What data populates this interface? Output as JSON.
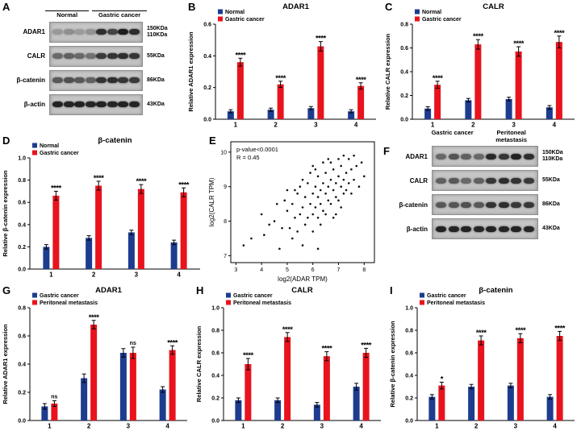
{
  "colors": {
    "blue": "#1d3c8f",
    "red": "#e8131d",
    "band": "#151515"
  },
  "panels": {
    "A": {
      "label": "A",
      "headers": [
        "Normal",
        "Gastric cancer"
      ],
      "rows": [
        {
          "protein": "ADAR1",
          "kda": [
            "150KDa",
            "110KDa"
          ],
          "lanes": [
            0.22,
            0.28,
            0.2,
            0.26,
            0.85,
            0.72,
            0.95,
            0.85
          ]
        },
        {
          "protein": "CALR",
          "kda": [
            "55KDa"
          ],
          "lanes": [
            0.5,
            0.55,
            0.5,
            0.45,
            0.78,
            0.82,
            0.85,
            0.8
          ]
        },
        {
          "protein": "β-catenin",
          "kda": [
            "86KDa"
          ],
          "lanes": [
            0.6,
            0.65,
            0.6,
            0.55,
            0.82,
            0.85,
            0.8,
            0.78
          ]
        },
        {
          "protein": "β-actin",
          "kda": [
            "43KDa"
          ],
          "lanes": [
            0.92,
            0.9,
            0.92,
            0.9,
            0.92,
            0.9,
            0.92,
            0.9
          ]
        }
      ]
    },
    "F": {
      "label": "F",
      "headers": [
        "Gastric cancer",
        "Peritoneal metastasis"
      ],
      "rows": [
        {
          "protein": "ADAR1",
          "kda": [
            "150KDa",
            "110KDa"
          ],
          "lanes": [
            0.5,
            0.62,
            0.55,
            0.5,
            0.88,
            0.8,
            0.92,
            0.85
          ]
        },
        {
          "protein": "CALR",
          "kda": [
            "55KDa"
          ],
          "lanes": [
            0.55,
            0.6,
            0.5,
            0.55,
            0.8,
            0.85,
            0.82,
            0.78
          ]
        },
        {
          "protein": "β-catenin",
          "kda": [
            "86KDa"
          ],
          "lanes": [
            0.6,
            0.62,
            0.65,
            0.6,
            0.82,
            0.85,
            0.8,
            0.8
          ]
        },
        {
          "protein": "β-actin",
          "kda": [
            "43KDa"
          ],
          "lanes": [
            0.92,
            0.9,
            0.92,
            0.9,
            0.92,
            0.9,
            0.92,
            0.9
          ]
        }
      ]
    }
  },
  "chart_data": [
    {
      "id": "B",
      "panel": "B",
      "type": "bar",
      "title": "ADAR1",
      "ylabel": "Relative ADAR1 expression",
      "ylim": [
        0,
        0.6
      ],
      "yticks": [
        0,
        0.2,
        0.4,
        0.6
      ],
      "categories": [
        "1",
        "2",
        "3",
        "4"
      ],
      "series": [
        {
          "name": "Normal",
          "color": "#1d3c8f",
          "values": [
            0.05,
            0.06,
            0.07,
            0.05
          ],
          "errors": [
            0.01,
            0.01,
            0.01,
            0.01
          ]
        },
        {
          "name": "Gastric cancer",
          "color": "#e8131d",
          "values": [
            0.36,
            0.22,
            0.46,
            0.21
          ],
          "errors": [
            0.025,
            0.02,
            0.03,
            0.02
          ]
        }
      ],
      "significance": [
        "****",
        "****",
        "****",
        "****"
      ]
    },
    {
      "id": "C",
      "panel": "C",
      "type": "bar",
      "title": "CALR",
      "ylabel": "Relative CALR expression",
      "ylim": [
        0,
        0.8
      ],
      "yticks": [
        0,
        0.2,
        0.4,
        0.6,
        0.8
      ],
      "categories": [
        "1",
        "2",
        "3",
        "4"
      ],
      "series": [
        {
          "name": "Normal",
          "color": "#1d3c8f",
          "values": [
            0.09,
            0.16,
            0.17,
            0.1
          ],
          "errors": [
            0.015,
            0.015,
            0.015,
            0.015
          ]
        },
        {
          "name": "Gastric cancer",
          "color": "#e8131d",
          "values": [
            0.29,
            0.63,
            0.57,
            0.65
          ],
          "errors": [
            0.03,
            0.04,
            0.04,
            0.05
          ]
        }
      ],
      "significance": [
        "****",
        "****",
        "****",
        "****"
      ]
    },
    {
      "id": "D",
      "panel": "D",
      "type": "bar",
      "title": "β-catenin",
      "ylabel": "Relative β-catenin expression",
      "ylim": [
        0,
        1.0
      ],
      "yticks": [
        0,
        0.2,
        0.4,
        0.6,
        0.8,
        1.0
      ],
      "categories": [
        "1",
        "2",
        "3",
        "4"
      ],
      "series": [
        {
          "name": "Normal",
          "color": "#1d3c8f",
          "values": [
            0.2,
            0.28,
            0.33,
            0.24
          ],
          "errors": [
            0.02,
            0.02,
            0.02,
            0.02
          ]
        },
        {
          "name": "Gastric cancer",
          "color": "#e8131d",
          "values": [
            0.66,
            0.75,
            0.72,
            0.69
          ],
          "errors": [
            0.04,
            0.04,
            0.04,
            0.04
          ]
        }
      ],
      "significance": [
        "****",
        "****",
        "****",
        "****"
      ]
    },
    {
      "id": "E",
      "panel": "E",
      "type": "scatter",
      "annotation": [
        "p-value<0.0001",
        "R = 0.45"
      ],
      "xlabel": "log2(ADAR TPM)",
      "ylabel": "log2(CALR TPM)",
      "xlim": [
        2.8,
        8.4
      ],
      "xticks": [
        3,
        4,
        5,
        6,
        7,
        8
      ],
      "ylim": [
        6.8,
        10.3
      ],
      "yticks": [
        7,
        8,
        9,
        10
      ],
      "points": [
        [
          3.3,
          7.3
        ],
        [
          3.6,
          7.5
        ],
        [
          4.0,
          8.2
        ],
        [
          4.1,
          7.6
        ],
        [
          4.3,
          7.9
        ],
        [
          4.5,
          8.0
        ],
        [
          4.6,
          8.5
        ],
        [
          4.7,
          7.2
        ],
        [
          4.8,
          7.8
        ],
        [
          4.9,
          8.6
        ],
        [
          5.0,
          8.3
        ],
        [
          5.0,
          8.9
        ],
        [
          5.1,
          7.8
        ],
        [
          5.2,
          8.5
        ],
        [
          5.2,
          7.5
        ],
        [
          5.3,
          8.1
        ],
        [
          5.3,
          8.9
        ],
        [
          5.4,
          8.8
        ],
        [
          5.4,
          7.7
        ],
        [
          5.5,
          8.2
        ],
        [
          5.5,
          9.0
        ],
        [
          5.6,
          8.4
        ],
        [
          5.6,
          9.2
        ],
        [
          5.6,
          7.3
        ],
        [
          5.7,
          8.7
        ],
        [
          5.7,
          7.9
        ],
        [
          5.8,
          8.1
        ],
        [
          5.8,
          9.1
        ],
        [
          5.9,
          8.5
        ],
        [
          5.9,
          9.4
        ],
        [
          6.0,
          8.8
        ],
        [
          6.0,
          8.2
        ],
        [
          6.0,
          7.7
        ],
        [
          6.0,
          9.6
        ],
        [
          6.1,
          9.0
        ],
        [
          6.1,
          8.4
        ],
        [
          6.1,
          9.5
        ],
        [
          6.2,
          8.7
        ],
        [
          6.2,
          9.3
        ],
        [
          6.2,
          7.2
        ],
        [
          6.2,
          8.1
        ],
        [
          6.3,
          8.5
        ],
        [
          6.3,
          8.9
        ],
        [
          6.3,
          7.9
        ],
        [
          6.4,
          9.1
        ],
        [
          6.4,
          8.3
        ],
        [
          6.4,
          9.7
        ],
        [
          6.5,
          8.8
        ],
        [
          6.5,
          9.4
        ],
        [
          6.5,
          8.2
        ],
        [
          6.6,
          8.6
        ],
        [
          6.6,
          9.0
        ],
        [
          6.6,
          9.8
        ],
        [
          6.7,
          9.2
        ],
        [
          6.7,
          8.5
        ],
        [
          6.7,
          9.7
        ],
        [
          6.8,
          8.9
        ],
        [
          6.8,
          9.5
        ],
        [
          6.8,
          8.1
        ],
        [
          6.9,
          8.7
        ],
        [
          6.9,
          9.1
        ],
        [
          6.9,
          8.2
        ],
        [
          7.0,
          9.3
        ],
        [
          7.0,
          8.6
        ],
        [
          7.0,
          9.8
        ],
        [
          7.1,
          9.0
        ],
        [
          7.1,
          9.6
        ],
        [
          7.1,
          8.4
        ],
        [
          7.2,
          8.8
        ],
        [
          7.2,
          9.2
        ],
        [
          7.2,
          9.9
        ],
        [
          7.3,
          9.4
        ],
        [
          7.3,
          8.9
        ],
        [
          7.4,
          9.1
        ],
        [
          7.4,
          9.8
        ],
        [
          7.5,
          9.5
        ],
        [
          7.5,
          8.8
        ],
        [
          7.6,
          9.2
        ],
        [
          7.6,
          9.9
        ],
        [
          7.7,
          9.6
        ],
        [
          7.8,
          9.0
        ],
        [
          7.9,
          9.7
        ],
        [
          8.0,
          9.3
        ]
      ]
    },
    {
      "id": "G",
      "panel": "G",
      "type": "bar",
      "title": "ADAR1",
      "ylabel": "Relative ADAR1 expression",
      "ylim": [
        0,
        0.8
      ],
      "yticks": [
        0,
        0.2,
        0.4,
        0.6,
        0.8
      ],
      "categories": [
        "1",
        "2",
        "3",
        "4"
      ],
      "series": [
        {
          "name": "Gastric cancer",
          "color": "#1d3c8f",
          "values": [
            0.1,
            0.3,
            0.48,
            0.22
          ],
          "errors": [
            0.02,
            0.03,
            0.03,
            0.02
          ]
        },
        {
          "name": "Peritoneal metastasis",
          "color": "#e8131d",
          "values": [
            0.12,
            0.68,
            0.48,
            0.5
          ],
          "errors": [
            0.02,
            0.03,
            0.04,
            0.03
          ]
        }
      ],
      "significance": [
        "ns",
        "****",
        "ns",
        "****"
      ]
    },
    {
      "id": "H",
      "panel": "H",
      "type": "bar",
      "title": "CALR",
      "ylabel": "Relative CALR expression",
      "ylim": [
        0,
        1.0
      ],
      "yticks": [
        0,
        0.2,
        0.4,
        0.6,
        0.8,
        1.0
      ],
      "categories": [
        "1",
        "2",
        "3",
        "4"
      ],
      "series": [
        {
          "name": "Gastric cancer",
          "color": "#1d3c8f",
          "values": [
            0.18,
            0.18,
            0.14,
            0.3
          ],
          "errors": [
            0.02,
            0.02,
            0.02,
            0.03
          ]
        },
        {
          "name": "Peritoneal metastasis",
          "color": "#e8131d",
          "values": [
            0.5,
            0.74,
            0.57,
            0.6
          ],
          "errors": [
            0.05,
            0.04,
            0.04,
            0.04
          ]
        }
      ],
      "significance": [
        "****",
        "****",
        "****",
        "****"
      ]
    },
    {
      "id": "I",
      "panel": "I",
      "type": "bar",
      "title": "β-catenin",
      "ylabel": "Relative β-catenin expression",
      "ylim": [
        0,
        1.0
      ],
      "yticks": [
        0,
        0.2,
        0.4,
        0.6,
        0.8,
        1.0
      ],
      "categories": [
        "1",
        "2",
        "3",
        "4"
      ],
      "series": [
        {
          "name": "Gastric cancer",
          "color": "#1d3c8f",
          "values": [
            0.21,
            0.3,
            0.31,
            0.21
          ],
          "errors": [
            0.02,
            0.02,
            0.02,
            0.02
          ]
        },
        {
          "name": "Peritoneal metastasis",
          "color": "#e8131d",
          "values": [
            0.31,
            0.71,
            0.73,
            0.75
          ],
          "errors": [
            0.03,
            0.04,
            0.04,
            0.04
          ]
        }
      ],
      "significance": [
        "*",
        "****",
        "****",
        "****"
      ]
    }
  ]
}
